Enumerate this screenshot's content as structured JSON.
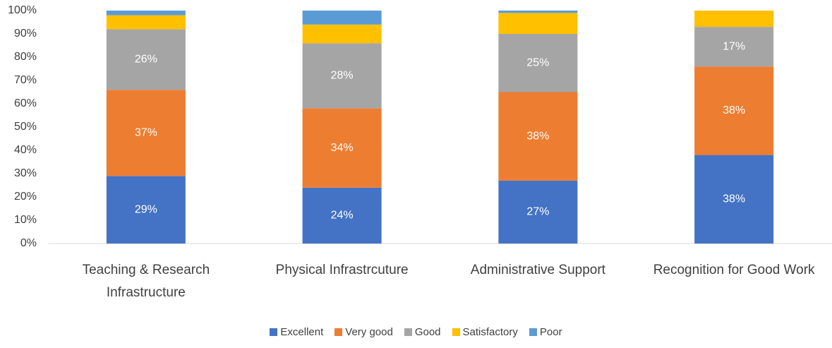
{
  "chart_data": {
    "type": "stacked_bar",
    "categories": [
      "Teaching & Research Infrastructure",
      "Physical Infrastrcuture",
      "Administrative Support",
      "Recognition for Good Work"
    ],
    "series": [
      {
        "name": "Excellent",
        "color": "#4472c4",
        "values": [
          29,
          24,
          27,
          38
        ],
        "value_labels": [
          "29%",
          "24%",
          "27%",
          "38%"
        ]
      },
      {
        "name": "Very good",
        "color": "#ed7d31",
        "values": [
          37,
          34,
          38,
          38
        ],
        "value_labels": [
          "37%",
          "34%",
          "38%",
          "38%"
        ]
      },
      {
        "name": "Good",
        "color": "#a5a5a5",
        "values": [
          26,
          28,
          25,
          17
        ],
        "value_labels": [
          "26%",
          "28%",
          "25%",
          "17%"
        ]
      },
      {
        "name": "Satisfactory",
        "color": "#ffc000",
        "values": [
          6,
          8,
          9,
          7
        ]
      },
      {
        "name": "Poor",
        "color": "#5b9bd5",
        "values": [
          2,
          6,
          1,
          0
        ]
      }
    ],
    "ylim": [
      0,
      100
    ],
    "yticks": [
      {
        "value": 0,
        "label": "0%"
      },
      {
        "value": 10,
        "label": "10%"
      },
      {
        "value": 20,
        "label": "20%"
      },
      {
        "value": 30,
        "label": "30%"
      },
      {
        "value": 40,
        "label": "40%"
      },
      {
        "value": 50,
        "label": "50%"
      },
      {
        "value": 60,
        "label": "60%"
      },
      {
        "value": 70,
        "label": "70%"
      },
      {
        "value": 80,
        "label": "80%"
      },
      {
        "value": 90,
        "label": "90%"
      },
      {
        "value": 100,
        "label": "100%"
      }
    ],
    "grid": false,
    "legend": "bottom"
  }
}
